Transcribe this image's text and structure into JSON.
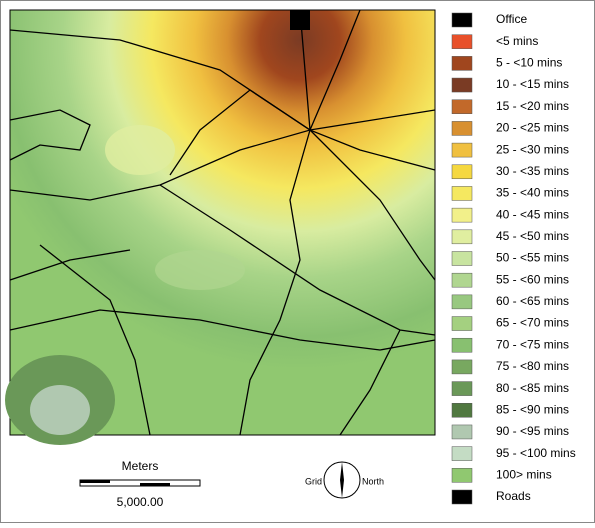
{
  "legend": [
    {
      "label": "Office",
      "color": "#000000"
    },
    {
      "label": "<5 mins",
      "color": "#e8502a"
    },
    {
      "label": "5 - <10 mins",
      "color": "#a0461e"
    },
    {
      "label": "10 - <15 mins",
      "color": "#7a3b24"
    },
    {
      "label": "15 - <20 mins",
      "color": "#c2692a"
    },
    {
      "label": "20 - <25 mins",
      "color": "#d89030"
    },
    {
      "label": "25 - <30 mins",
      "color": "#f0c040"
    },
    {
      "label": "30 - <35 mins",
      "color": "#f5d840"
    },
    {
      "label": "35 - <40 mins",
      "color": "#f5e860"
    },
    {
      "label": "40 - <45 mins",
      "color": "#f2f08a"
    },
    {
      "label": "45 - <50 mins",
      "color": "#e0eea0"
    },
    {
      "label": "50 - <55 mins",
      "color": "#c8e4a0"
    },
    {
      "label": "55 - <60 mins",
      "color": "#b0d690"
    },
    {
      "label": "60 - <65 mins",
      "color": "#98c880"
    },
    {
      "label": "65 - <70 mins",
      "color": "#a4d080"
    },
    {
      "label": "70 - <75 mins",
      "color": "#88c070"
    },
    {
      "label": "75 - <80 mins",
      "color": "#78a860"
    },
    {
      "label": "80 - <85 mins",
      "color": "#6a9858"
    },
    {
      "label": "85 - <90 mins",
      "color": "#507840"
    },
    {
      "label": "90 - <95 mins",
      "color": "#b0c8b0"
    },
    {
      "label": "95 - <100 mins",
      "color": "#c4dcc4"
    },
    {
      "label": "100> mins",
      "color": "#90c870"
    },
    {
      "label": "Roads",
      "color": "#000000"
    }
  ],
  "scale": {
    "title": "Meters",
    "distance": "5,000.00"
  },
  "north_arrow": {
    "left": "Grid",
    "right": "North"
  }
}
